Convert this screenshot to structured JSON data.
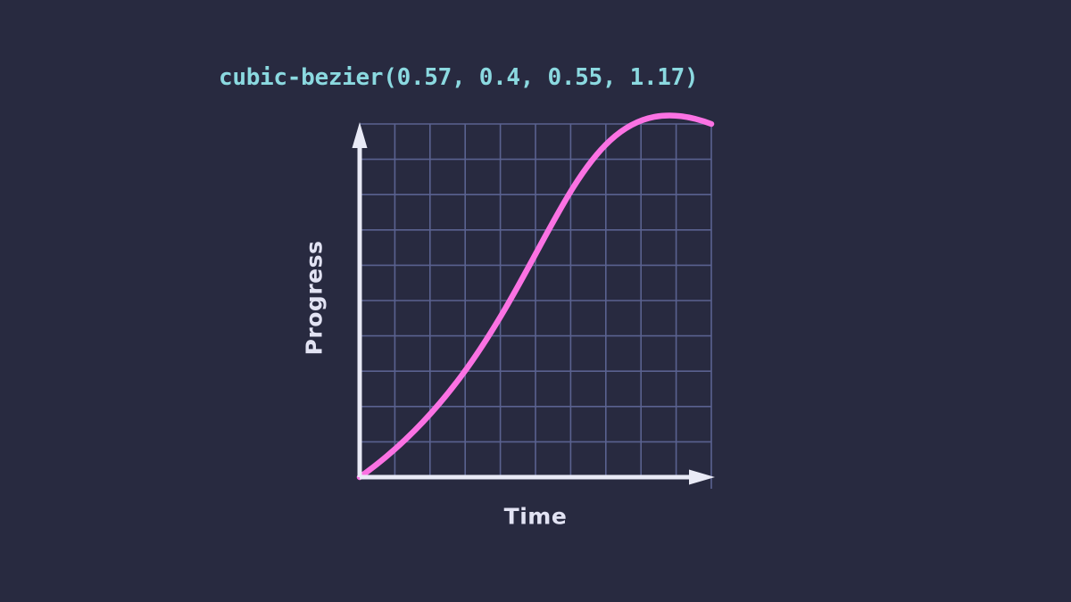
{
  "title": "cubic-bezier(0.57, 0.4, 0.55, 1.17)",
  "chart_data": {
    "type": "line",
    "title": "cubic-bezier(0.57, 0.4, 0.55, 1.17)",
    "xlabel": "Time",
    "ylabel": "Progress",
    "x_range": [
      0,
      1
    ],
    "y_range": [
      0,
      1
    ],
    "grid": true,
    "grid_divisions": 10,
    "legend_position": "none",
    "bezier_control_points": {
      "x1": 0.57,
      "y1": 0.4,
      "x2": 0.55,
      "y2": 1.17
    },
    "curve_start": {
      "x": 0,
      "y": 0
    },
    "curve_end": {
      "x": 1,
      "y": 1
    },
    "peak_overshoot": {
      "x": 0.88,
      "y": 1.02
    },
    "sampled_points": [
      {
        "x": 0.0,
        "y": 0.0
      },
      {
        "x": 0.154,
        "y": 0.13
      },
      {
        "x": 0.28,
        "y": 0.274
      },
      {
        "x": 0.382,
        "y": 0.425
      },
      {
        "x": 0.469,
        "y": 0.574
      },
      {
        "x": 0.545,
        "y": 0.714
      },
      {
        "x": 0.618,
        "y": 0.837
      },
      {
        "x": 0.693,
        "y": 0.935
      },
      {
        "x": 0.778,
        "y": 1.0
      },
      {
        "x": 0.878,
        "y": 1.024
      },
      {
        "x": 1.0,
        "y": 1.0
      }
    ]
  },
  "colors": {
    "background": "#282a40",
    "title": "#8bd9e0",
    "grid_line": "#5a6290",
    "axis": "#e9eaf6",
    "curve": "#fb72e3",
    "axis_label": "#e2e3f3"
  }
}
